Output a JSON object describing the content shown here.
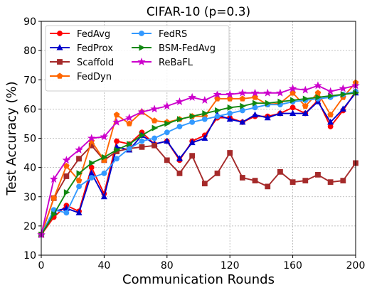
{
  "chart_data": {
    "type": "line",
    "title": "CIFAR-10 (p=0.3)",
    "xlabel": "Communication Rounds",
    "ylabel": "Test Accuracy (%)",
    "xlim": [
      0,
      200
    ],
    "ylim": [
      10,
      90
    ],
    "xticks": [
      0,
      40,
      80,
      120,
      160,
      200
    ],
    "yticks": [
      10,
      20,
      30,
      40,
      50,
      60,
      70,
      80,
      90
    ],
    "grid": true,
    "legend_position": "top-left",
    "x": [
      0,
      8,
      16,
      24,
      32,
      40,
      48,
      56,
      64,
      72,
      80,
      88,
      96,
      104,
      112,
      120,
      128,
      136,
      144,
      152,
      160,
      168,
      176,
      184,
      192,
      200
    ],
    "series": [
      {
        "name": "FedAvg",
        "color": "#ff0000",
        "marker": "circle",
        "values": [
          17,
          23,
          27,
          25,
          40,
          31,
          49,
          48,
          52,
          48,
          49,
          42.5,
          49,
          51,
          57,
          57,
          55.5,
          57.5,
          57.5,
          58.5,
          60.5,
          58.5,
          63,
          54,
          59.5,
          66
        ]
      },
      {
        "name": "FedProx",
        "color": "#0000cc",
        "marker": "triangle-up",
        "values": [
          17,
          25,
          26,
          24.5,
          38,
          30,
          47,
          46,
          51,
          48,
          49,
          43,
          48.5,
          50,
          58,
          56.5,
          55.5,
          58,
          57,
          58.5,
          58.5,
          58.5,
          62.5,
          55.5,
          60,
          65.5
        ]
      },
      {
        "name": "Scaffold",
        "color": "#a52a2a",
        "marker": "square",
        "values": [
          17,
          29.5,
          37,
          43,
          47.5,
          42.5,
          45.5,
          46.5,
          47,
          47.5,
          42.5,
          38,
          44,
          34.5,
          38,
          45,
          36.5,
          35.5,
          33.5,
          38.5,
          35,
          35.5,
          37.5,
          35,
          35.5,
          41.5
        ]
      },
      {
        "name": "FedDyn",
        "color": "#ff6600",
        "marker": "pentagon",
        "values": [
          17,
          29.5,
          40.5,
          35.5,
          49,
          42.5,
          58,
          55,
          59,
          56,
          55.5,
          56.5,
          57.5,
          57.5,
          63.5,
          63.5,
          63.5,
          64,
          61.5,
          62,
          65.5,
          61,
          65.5,
          58,
          64,
          69
        ]
      },
      {
        "name": "FedRS",
        "color": "#3399ff",
        "marker": "circle",
        "values": [
          17,
          25.5,
          24.5,
          33.5,
          36.5,
          38,
          43,
          46.5,
          49,
          50,
          52,
          54,
          55.5,
          56.5,
          57.5,
          58.5,
          59.5,
          60.5,
          61.5,
          61.5,
          62.5,
          63,
          63.5,
          64,
          65,
          66
        ]
      },
      {
        "name": "BSM-FedAvg",
        "color": "#118811",
        "marker": "triangle-right",
        "values": [
          17,
          24,
          31.5,
          38,
          41.5,
          43.5,
          46,
          48,
          51,
          53.5,
          55,
          56.5,
          57.5,
          58.5,
          59.5,
          60.5,
          61,
          62,
          62,
          62.5,
          63,
          63.5,
          64,
          64.5,
          65,
          65.5
        ]
      },
      {
        "name": "ReBaFL",
        "color": "#cc00cc",
        "marker": "star",
        "values": [
          17,
          36,
          42.5,
          46,
          50,
          50.5,
          55.5,
          57,
          59,
          60,
          61,
          62.5,
          64,
          63,
          65,
          65,
          65.5,
          65.5,
          65.5,
          65.5,
          67,
          66.5,
          68,
          66,
          67,
          68
        ]
      }
    ]
  }
}
